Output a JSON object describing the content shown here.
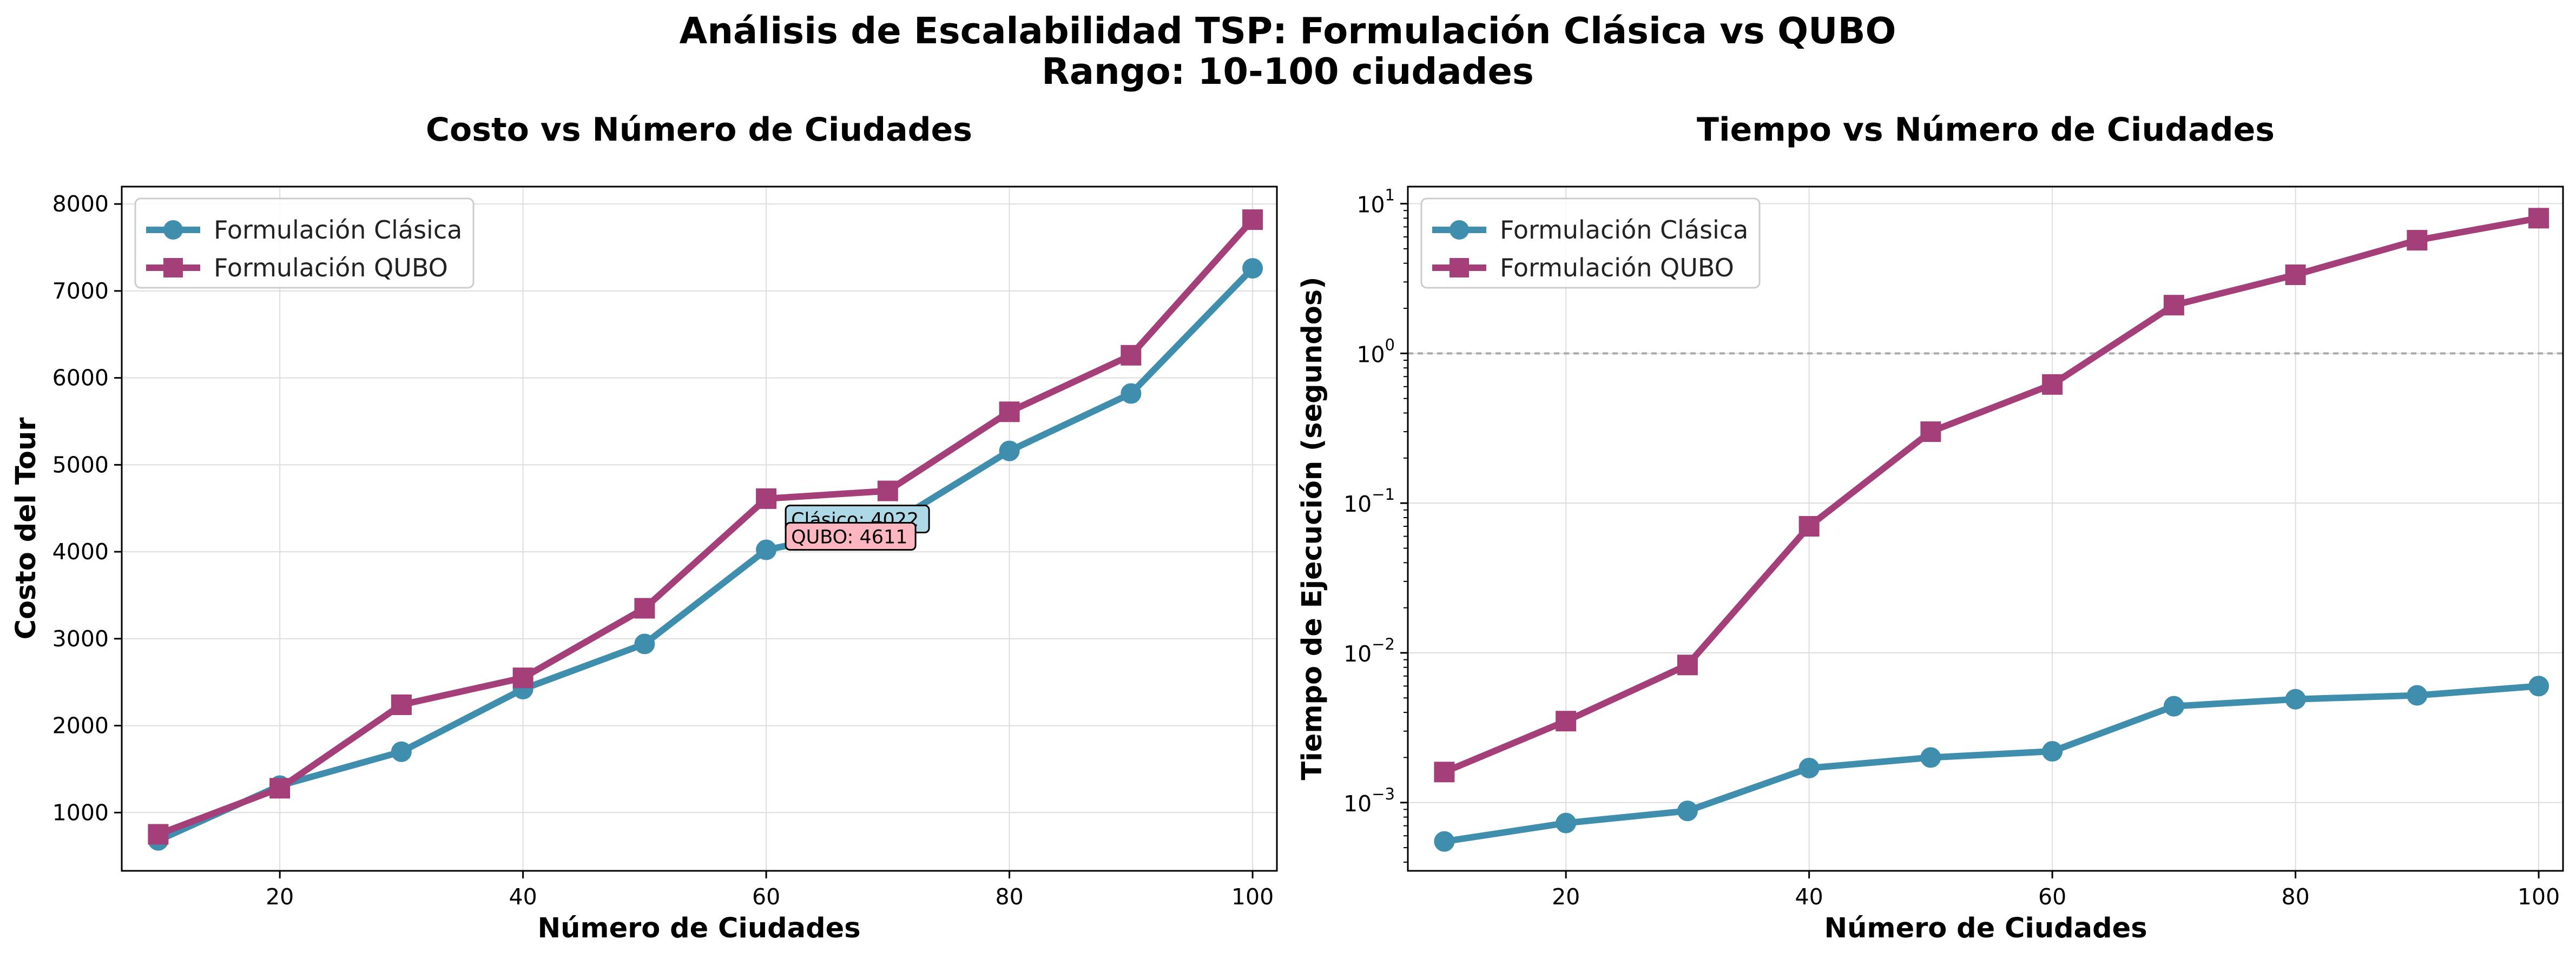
{
  "figure": {
    "title_line1": "Análisis de Escalabilidad TSP: Formulación Clásica vs QUBO",
    "title_line2": "Rango: 10-100 ciudades"
  },
  "colors": {
    "clasica": "#3F8EAE",
    "qubo": "#A43F79",
    "grid": "#DDDDDD",
    "reference_line": "#AAAAAA",
    "annotation_clasica_bg": "#ADD8E6",
    "annotation_qubo_bg": "#FFB6C1"
  },
  "chart_data": [
    {
      "type": "line",
      "title": "Costo vs Número de Ciudades",
      "xlabel": "Número de Ciudades",
      "ylabel": "Costo del Tour",
      "x": [
        10,
        20,
        30,
        40,
        50,
        60,
        70,
        80,
        90,
        100
      ],
      "xlim": [
        7,
        102
      ],
      "ylim": [
        330,
        8200
      ],
      "xticks": [
        "20",
        "40",
        "60",
        "80",
        "100"
      ],
      "yticks": [
        "1000",
        "2000",
        "3000",
        "4000",
        "5000",
        "6000",
        "7000",
        "8000"
      ],
      "grid": true,
      "legend_position": "upper left",
      "series": [
        {
          "name": "Formulación Clásica",
          "marker": "circle",
          "values": [
            680,
            1310,
            1700,
            2420,
            2940,
            4022,
            4300,
            5160,
            5820,
            7260
          ]
        },
        {
          "name": "Formulación QUBO",
          "marker": "square",
          "values": [
            750,
            1280,
            2240,
            2550,
            3350,
            4611,
            4700,
            5610,
            6260,
            7820
          ]
        }
      ],
      "annotations": [
        "Clásico: 4022",
        "QUBO: 4611"
      ]
    },
    {
      "type": "line",
      "title": "Tiempo vs Número de Ciudades",
      "xlabel": "Número de Ciudades",
      "ylabel": "Tiempo de Ejecución (segundos)",
      "yscale": "log",
      "x": [
        10,
        20,
        30,
        40,
        50,
        60,
        70,
        80,
        90,
        100
      ],
      "xlim": [
        7,
        102
      ],
      "ylim": [
        0.00035,
        13
      ],
      "xticks": [
        "20",
        "40",
        "60",
        "80",
        "100"
      ],
      "yticks": [
        {
          "base": "10",
          "exp": "−3"
        },
        {
          "base": "10",
          "exp": "−2"
        },
        {
          "base": "10",
          "exp": "−1"
        },
        {
          "base": "10",
          "exp": "0"
        },
        {
          "base": "10",
          "exp": "1"
        }
      ],
      "reference_line_y": 1,
      "grid": true,
      "legend_position": "upper left",
      "series": [
        {
          "name": "Formulación Clásica",
          "marker": "circle",
          "values": [
            0.00055,
            0.00073,
            0.00088,
            0.0017,
            0.002,
            0.0022,
            0.0044,
            0.0049,
            0.0052,
            0.006
          ]
        },
        {
          "name": "Formulación QUBO",
          "marker": "square",
          "values": [
            0.0016,
            0.0035,
            0.0083,
            0.07,
            0.3,
            0.62,
            2.1,
            3.35,
            5.7,
            8.0
          ]
        }
      ]
    }
  ]
}
